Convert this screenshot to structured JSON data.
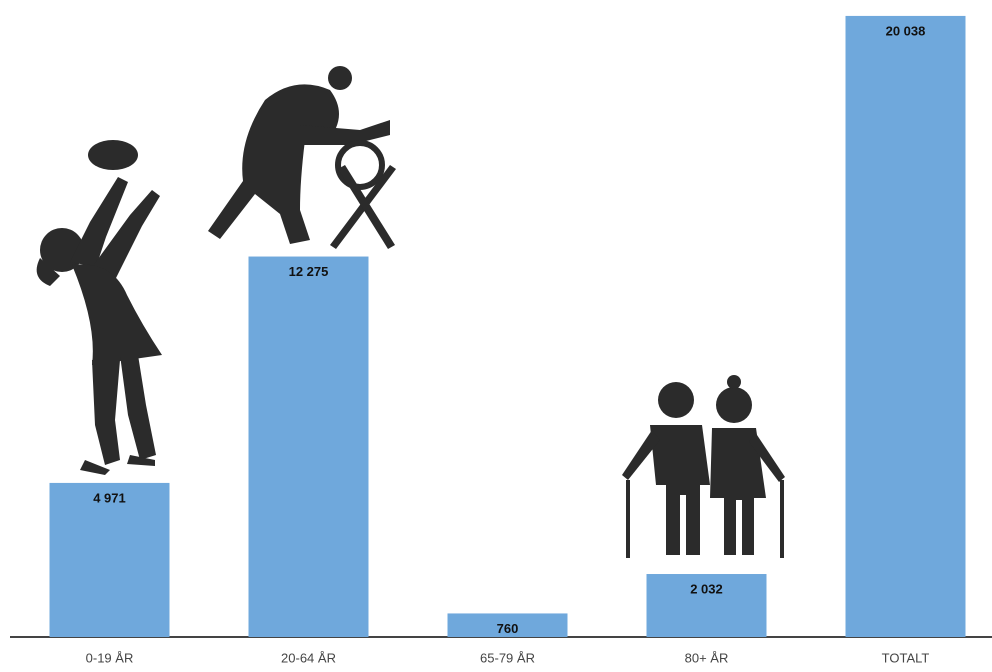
{
  "chart_data": {
    "type": "bar",
    "categories": [
      "0-19 ÅR",
      "20-64 ÅR",
      "65-79 ÅR",
      "80+ ÅR",
      "TOTALT"
    ],
    "values": [
      4971,
      12275,
      760,
      2032,
      20038
    ],
    "value_labels": [
      "4 971",
      "12 275",
      "760",
      "2 032",
      "20 038"
    ],
    "color": "#6fa8dc",
    "ylim": [
      0,
      20100
    ]
  }
}
